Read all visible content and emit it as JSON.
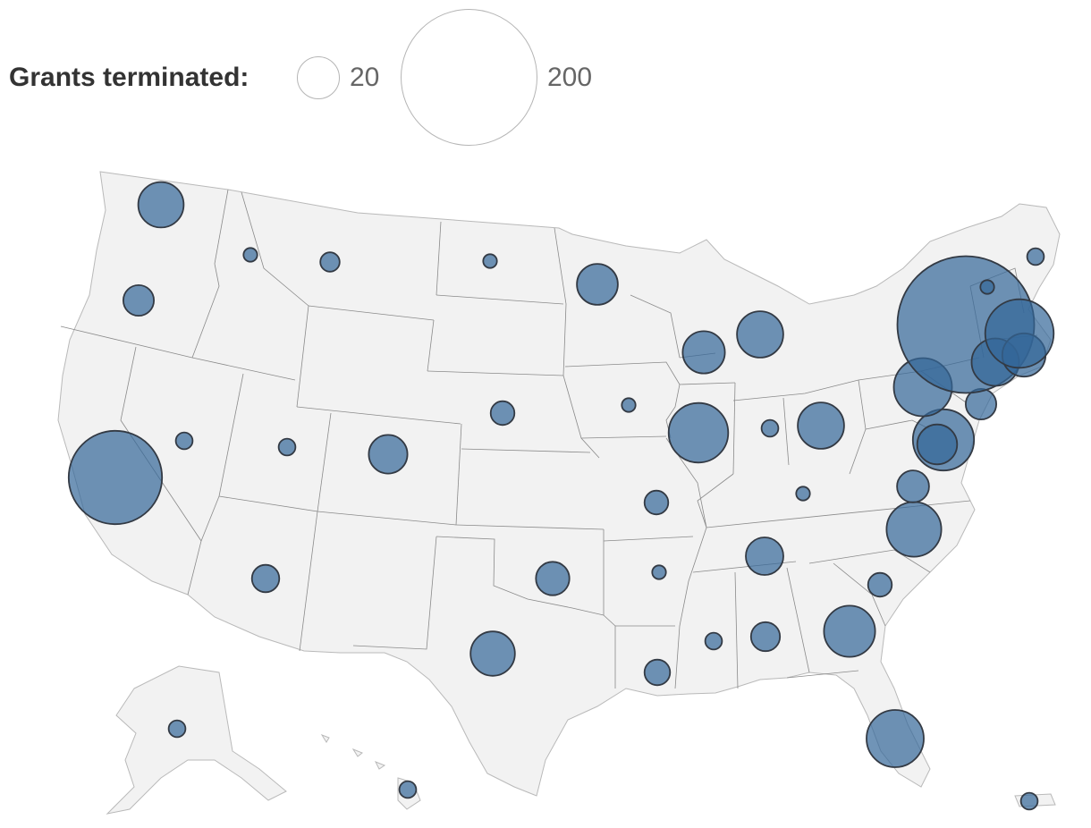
{
  "legend": {
    "title": "Grants terminated:",
    "small_value": "20",
    "large_value": "200"
  },
  "colors": {
    "bubble_fill": "#336699",
    "land": "#f2f2f2",
    "border": "#8a8a8a"
  },
  "bubbles": [
    {
      "state": "Washington",
      "grants": 22
    },
    {
      "state": "Oregon",
      "grants": 10
    },
    {
      "state": "California",
      "grants": 93
    },
    {
      "state": "Nevada",
      "grants": 3
    },
    {
      "state": "Idaho",
      "grants": 2
    },
    {
      "state": "Montana",
      "grants": 4
    },
    {
      "state": "Utah",
      "grants": 3
    },
    {
      "state": "Colorado",
      "grants": 16
    },
    {
      "state": "Arizona",
      "grants": 8
    },
    {
      "state": "Wyoming",
      "grants": 0
    },
    {
      "state": "North Dakota",
      "grants": 2
    },
    {
      "state": "Nebraska",
      "grants": 6
    },
    {
      "state": "Minnesota",
      "grants": 18
    },
    {
      "state": "Iowa",
      "grants": 2
    },
    {
      "state": "Wisconsin",
      "grants": 19
    },
    {
      "state": "Illinois",
      "grants": 38
    },
    {
      "state": "Michigan",
      "grants": 23
    },
    {
      "state": "Indiana",
      "grants": 3
    },
    {
      "state": "Ohio",
      "grants": 23
    },
    {
      "state": "Missouri",
      "grants": 6
    },
    {
      "state": "Kentucky",
      "grants": 2
    },
    {
      "state": "Tennessee",
      "grants": 15
    },
    {
      "state": "Arkansas",
      "grants": 2
    },
    {
      "state": "Oklahoma",
      "grants": 12
    },
    {
      "state": "Texas",
      "grants": 21
    },
    {
      "state": "Louisiana",
      "grants": 7
    },
    {
      "state": "Mississippi",
      "grants": 3
    },
    {
      "state": "Alabama",
      "grants": 9
    },
    {
      "state": "Georgia",
      "grants": 28
    },
    {
      "state": "South Carolina",
      "grants": 6
    },
    {
      "state": "Florida",
      "grants": 35
    },
    {
      "state": "North Carolina",
      "grants": 32
    },
    {
      "state": "Virginia",
      "grants": 11
    },
    {
      "state": "Maryland",
      "grants": 40
    },
    {
      "state": "Delaware",
      "grants": 17
    },
    {
      "state": "Pennsylvania",
      "grants": 36
    },
    {
      "state": "New Jersey",
      "grants": 10
    },
    {
      "state": "New York",
      "grants": 200
    },
    {
      "state": "Connecticut",
      "grants": 24
    },
    {
      "state": "Rhode Island",
      "grants": 20
    },
    {
      "state": "Massachusetts",
      "grants": 50
    },
    {
      "state": "Vermont",
      "grants": 2
    },
    {
      "state": "Maine",
      "grants": 3
    },
    {
      "state": "Alaska",
      "grants": 3
    },
    {
      "state": "Hawaii",
      "grants": 3
    },
    {
      "state": "Puerto Rico",
      "grants": 3
    }
  ]
}
